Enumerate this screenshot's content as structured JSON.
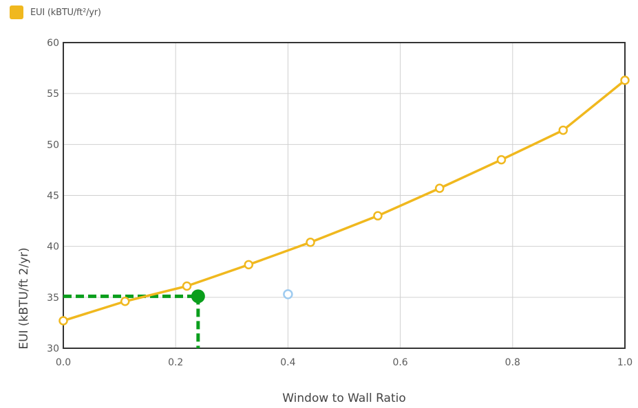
{
  "legend": {
    "label": "EUI (kBTU/ft²/yr)",
    "swatch_color": "#f0b81e"
  },
  "chart_data": {
    "type": "line",
    "xlabel": "Window to Wall Ratio",
    "ylabel": "EUI (kBTU/ft 2/yr)",
    "xlim": [
      0.0,
      1.0
    ],
    "ylim": [
      30,
      60
    ],
    "x_ticks": [
      "0.0",
      "0.2",
      "0.4",
      "0.6",
      "0.8",
      "1.0"
    ],
    "y_ticks": [
      "30",
      "35",
      "40",
      "45",
      "50",
      "55",
      "60"
    ],
    "grid": true,
    "legend_position": "top-left",
    "series": [
      {
        "name": "EUI (kBTU/ft²/yr)",
        "color": "#f0b81e",
        "x": [
          0.0,
          0.11,
          0.22,
          0.33,
          0.44,
          0.56,
          0.67,
          0.78,
          0.89,
          1.0
        ],
        "y": [
          32.7,
          34.6,
          36.1,
          38.2,
          40.4,
          43.0,
          45.7,
          48.5,
          51.4,
          56.3
        ]
      }
    ],
    "selected_point": {
      "x": 0.24,
      "y": 35.1,
      "color": "#0a9e1c"
    },
    "extra_point": {
      "x": 0.4,
      "y": 35.3,
      "color": "#9ecbf0"
    }
  }
}
